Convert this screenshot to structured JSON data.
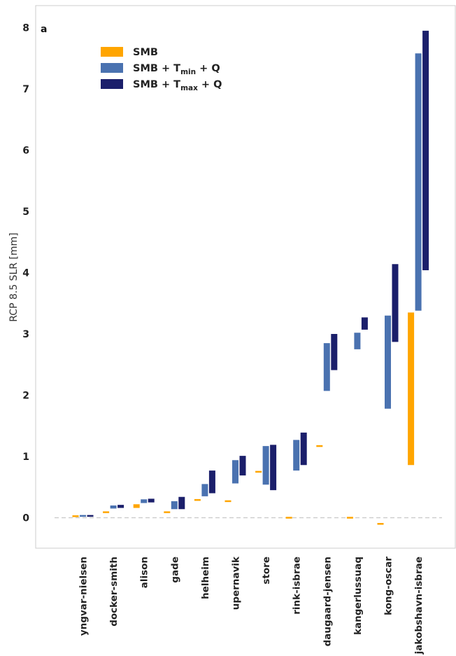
{
  "chart_data": {
    "type": "bar",
    "panel_label": "a",
    "ylabel": "RCP 8.5 SLR [mm]",
    "ylim": [
      -0.5,
      8.35
    ],
    "yticks": [
      0,
      1,
      2,
      3,
      4,
      5,
      6,
      7,
      8
    ],
    "grid": false,
    "zero_line": {
      "value": 0,
      "style": "dashed",
      "color": "#cccccc"
    },
    "legend": {
      "placement": "top-left",
      "entries": [
        {
          "series": "smb",
          "main": "SMB",
          "sub": "",
          "after": ""
        },
        {
          "series": "tmin",
          "main": "SMB + T",
          "sub": "min",
          "after": " + Q"
        },
        {
          "series": "tmax",
          "main": "SMB + T",
          "sub": "max",
          "after": " + Q"
        }
      ]
    },
    "categories": [
      "yngvar-nielsen",
      "docker-smith",
      "alison",
      "gade",
      "helheim",
      "upernavik",
      "store",
      "rink-isbrae",
      "daugaard-jensen",
      "kangerlussuaq",
      "kong-oscar",
      "jakobshavn-isbrae"
    ],
    "series": [
      {
        "key": "smb",
        "name": "SMB",
        "color": "#ffa500",
        "ranges": [
          [
            0.02,
            0.03
          ],
          [
            0.08,
            0.1
          ],
          [
            0.16,
            0.22
          ],
          [
            0.08,
            0.1
          ],
          [
            0.28,
            0.3
          ],
          [
            0.26,
            0.28
          ],
          [
            0.74,
            0.76
          ],
          [
            -0.01,
            0.01
          ],
          [
            1.16,
            1.18
          ],
          [
            -0.01,
            0.01
          ],
          [
            -0.11,
            -0.09
          ],
          [
            0.86,
            3.35
          ]
        ]
      },
      {
        "key": "tmin",
        "name": "SMB + Tmin + Q",
        "color": "#4a72b0",
        "ranges": [
          [
            0.02,
            0.04
          ],
          [
            0.15,
            0.2
          ],
          [
            0.24,
            0.3
          ],
          [
            0.14,
            0.27
          ],
          [
            0.35,
            0.55
          ],
          [
            0.56,
            0.94
          ],
          [
            0.54,
            1.17
          ],
          [
            0.77,
            1.27
          ],
          [
            2.07,
            2.85
          ],
          [
            2.75,
            3.02
          ],
          [
            1.78,
            3.3
          ],
          [
            3.38,
            7.58
          ]
        ]
      },
      {
        "key": "tmax",
        "name": "SMB + Tmax + Q",
        "color": "#1b1f6b",
        "ranges": [
          [
            0.02,
            0.04
          ],
          [
            0.16,
            0.21
          ],
          [
            0.25,
            0.31
          ],
          [
            0.14,
            0.34
          ],
          [
            0.4,
            0.77
          ],
          [
            0.69,
            1.01
          ],
          [
            0.45,
            1.19
          ],
          [
            0.86,
            1.39
          ],
          [
            2.41,
            3.0
          ],
          [
            3.07,
            3.27
          ],
          [
            2.87,
            4.14
          ],
          [
            4.04,
            7.95
          ]
        ]
      }
    ]
  }
}
